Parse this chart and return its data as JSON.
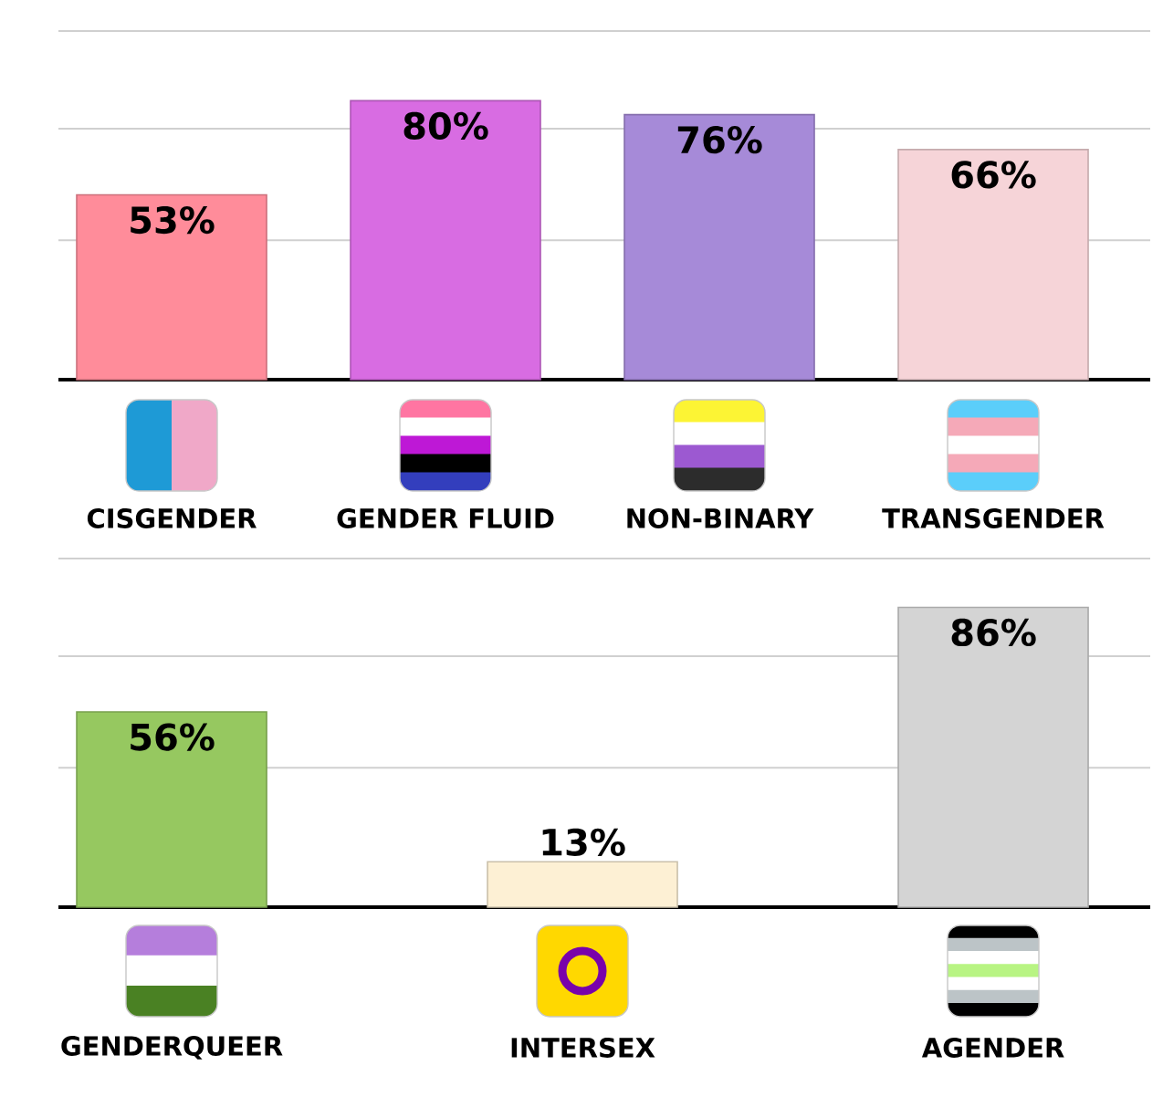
{
  "chart_data": [
    {
      "type": "bar",
      "categories": [
        "CISGENDER",
        "GENDER FLUID",
        "NON-BINARY",
        "TRANSGENDER"
      ],
      "values": [
        53,
        80,
        76,
        66
      ],
      "value_labels": [
        "53%",
        "80%",
        "76%",
        "66%"
      ],
      "colors": [
        "#ff8c9a",
        "#d86ce2",
        "#a68ad8",
        "#f6d4d8"
      ],
      "ylim": [
        0,
        100
      ],
      "yticks": [
        {
          "value": 40,
          "label": null
        },
        {
          "value": 72,
          "label": null
        },
        {
          "value": 100,
          "label": null
        }
      ],
      "grid": "y"
    },
    {
      "type": "bar",
      "categories": [
        "GENDERQUEER",
        "INTERSEX",
        "AGENDER"
      ],
      "values": [
        56,
        13,
        86
      ],
      "value_labels": [
        "56%",
        "13%",
        "86%"
      ],
      "colors": [
        "#96c860",
        "#fdf0d4",
        "#d4d4d4"
      ],
      "ylim": [
        0,
        100
      ],
      "yticks": [
        {
          "value": 40,
          "label": null
        },
        {
          "value": 72,
          "label": null
        },
        {
          "value": 100,
          "label": null
        }
      ],
      "grid": "y"
    }
  ]
}
